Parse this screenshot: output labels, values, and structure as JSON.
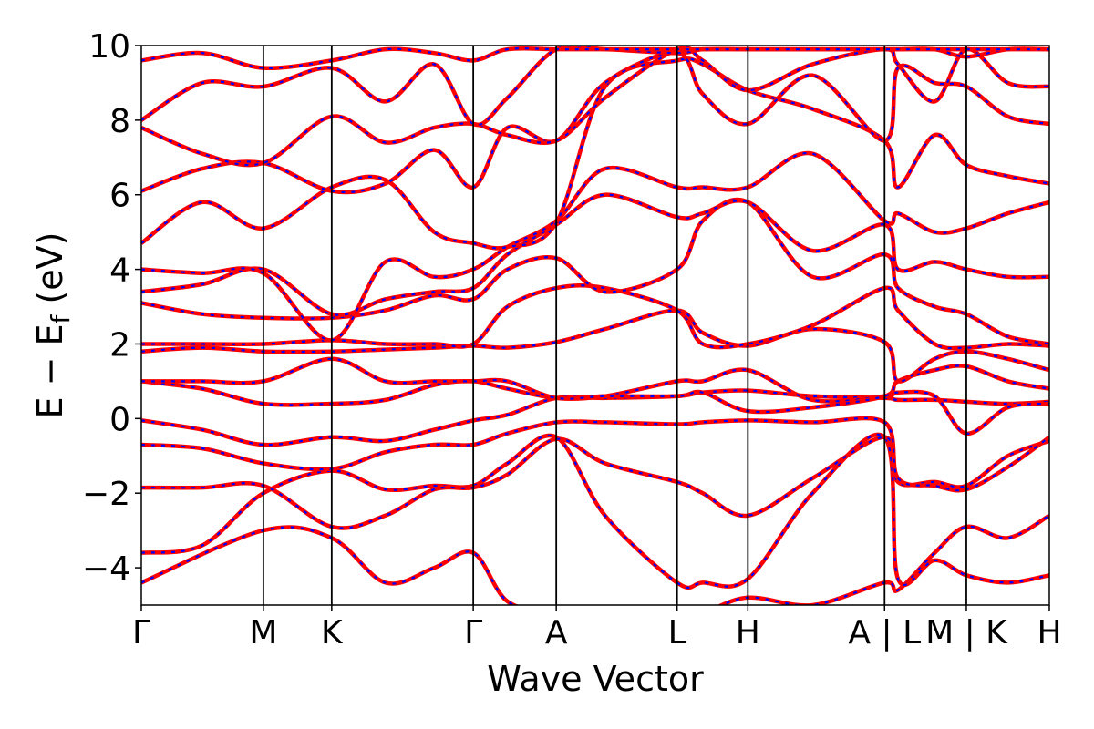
{
  "chart_data": {
    "type": "line",
    "title": "",
    "xlabel": "Wave Vector",
    "ylabel": "E − E_f (eV)",
    "ylabel_main": "E  −  E",
    "ylabel_sub": "f",
    "ylabel_unit": " (eV)",
    "ylim": [
      -5,
      10
    ],
    "xlim": [
      0,
      7.44
    ],
    "grid": false,
    "legend": "none",
    "yticks": [
      -4,
      -2,
      0,
      2,
      4,
      6,
      8,
      10
    ],
    "ytick_labels": [
      "−4",
      "−2",
      "0",
      "2",
      "4",
      "6",
      "8",
      "10"
    ],
    "high_symmetry_points": [
      {
        "x": 0.0,
        "label": "Γ"
      },
      {
        "x": 1.0,
        "label": "M"
      },
      {
        "x": 1.56,
        "label": "K"
      },
      {
        "x": 2.72,
        "label": "Γ"
      },
      {
        "x": 3.4,
        "label": "A"
      },
      {
        "x": 4.39,
        "label": "L"
      },
      {
        "x": 4.97,
        "label": "H"
      },
      {
        "x": 6.09,
        "label": "A | L"
      },
      {
        "x": 6.76,
        "label": "M | K"
      },
      {
        "x": 7.44,
        "label": "H"
      }
    ],
    "series_colors": {
      "reference": "#ff0000",
      "overlay": "#0000ff"
    },
    "series": [
      {
        "x": [
          0,
          1.0,
          1.56,
          2.0,
          2.4,
          2.72,
          3.0,
          3.4,
          3.8,
          4.39,
          4.6,
          4.97,
          5.5,
          6.09,
          6.2,
          6.5,
          6.76,
          7.1,
          7.44
        ],
        "y": [
          -4.4,
          -3.0,
          -3.2,
          -4.4,
          -4.0,
          -3.6,
          -4.9,
          -5.2,
          -5.2,
          -5.2,
          -5.2,
          -4.8,
          -5.0,
          -4.4,
          -4.6,
          -3.6,
          -2.9,
          -3.2,
          -2.6
        ]
      },
      {
        "x": [
          0,
          0.5,
          1.0,
          1.56,
          2.0,
          2.4,
          2.72,
          3.0,
          3.4,
          3.8,
          4.39,
          4.6,
          4.97,
          5.5,
          6.09,
          6.2,
          6.5,
          6.76,
          7.1,
          7.44
        ],
        "y": [
          -3.6,
          -3.4,
          -2.0,
          -1.4,
          -1.9,
          -1.8,
          -1.8,
          -1.2,
          -0.5,
          -2.6,
          -4.4,
          -4.4,
          -4.3,
          -2.0,
          -0.5,
          -4.3,
          -3.8,
          -4.2,
          -4.4,
          -4.2
        ]
      },
      {
        "x": [
          0,
          0.5,
          1.0,
          1.56,
          2.0,
          2.4,
          2.72,
          3.0,
          3.4,
          3.8,
          4.39,
          4.6,
          4.97,
          5.5,
          6.09,
          6.2,
          6.5,
          6.76,
          7.1,
          7.44
        ],
        "y": [
          -1.85,
          -1.85,
          -1.8,
          -2.9,
          -2.6,
          -1.9,
          -1.85,
          -1.5,
          -0.55,
          -1.2,
          -1.7,
          -2.0,
          -2.6,
          -1.6,
          -0.5,
          -1.7,
          -1.7,
          -1.8,
          -1.0,
          -0.6
        ]
      },
      {
        "x": [
          0,
          0.5,
          1.0,
          1.56,
          2.0,
          2.4,
          2.72,
          3.0,
          3.4,
          3.8,
          4.39,
          4.6,
          4.97,
          5.5,
          6.09,
          6.2,
          6.5,
          6.76,
          7.1,
          7.44
        ],
        "y": [
          -0.7,
          -0.8,
          -1.2,
          -1.35,
          -0.9,
          -0.7,
          -0.7,
          -0.4,
          -0.1,
          -0.1,
          -0.15,
          -0.1,
          -0.05,
          -0.1,
          -0.1,
          -1.6,
          -1.8,
          -1.9,
          -1.3,
          -0.5
        ]
      },
      {
        "x": [
          0,
          0.5,
          1.0,
          1.56,
          2.0,
          2.4,
          2.72,
          3.0,
          3.4,
          3.8,
          4.39,
          4.6,
          4.97,
          5.5,
          6.09,
          6.2,
          6.5,
          6.76,
          7.1,
          7.44
        ],
        "y": [
          -0.05,
          -0.3,
          -0.7,
          -0.5,
          -0.6,
          -0.3,
          -0.05,
          0.1,
          0.55,
          0.55,
          0.6,
          0.7,
          0.75,
          0.6,
          0.55,
          0.5,
          0.5,
          0.45,
          0.4,
          0.45
        ]
      },
      {
        "x": [
          0,
          0.5,
          1.0,
          1.56,
          2.0,
          2.4,
          2.72,
          3.0,
          3.4,
          3.8,
          4.39,
          4.6,
          4.97,
          5.5,
          6.09,
          6.2,
          6.5,
          6.76,
          7.1,
          7.44
        ],
        "y": [
          1.0,
          0.8,
          0.4,
          0.4,
          0.5,
          0.9,
          1.0,
          0.8,
          0.55,
          0.6,
          1.0,
          1.0,
          1.3,
          0.5,
          0.6,
          0.7,
          0.6,
          -0.4,
          0.3,
          0.4
        ]
      },
      {
        "x": [
          0,
          0.5,
          1.0,
          1.56,
          2.0,
          2.4,
          2.72,
          3.0,
          3.4,
          3.8,
          4.39,
          4.6,
          4.97,
          5.5,
          6.09,
          6.2,
          6.5,
          6.76,
          7.1,
          7.44
        ],
        "y": [
          1.0,
          1.0,
          1.0,
          1.6,
          1.0,
          1.0,
          1.0,
          1.0,
          0.55,
          0.6,
          0.6,
          0.7,
          0.2,
          0.3,
          0.6,
          1.0,
          1.3,
          1.4,
          1.0,
          0.8
        ]
      },
      {
        "x": [
          0,
          0.5,
          1.0,
          1.56,
          2.0,
          2.4,
          2.72,
          3.0,
          3.4,
          3.8,
          4.39,
          4.6,
          4.97,
          5.5,
          6.09,
          6.2,
          6.5,
          6.76,
          7.1,
          7.44
        ],
        "y": [
          1.8,
          1.9,
          1.8,
          1.8,
          1.85,
          1.9,
          1.95,
          1.9,
          2.05,
          2.4,
          2.9,
          2.3,
          1.95,
          2.4,
          2.05,
          1.0,
          1.6,
          1.8,
          1.6,
          1.3
        ]
      },
      {
        "x": [
          0,
          0.5,
          1.0,
          1.56,
          2.0,
          2.4,
          2.72,
          3.0,
          3.4,
          3.8,
          4.39,
          4.6,
          4.97,
          5.5,
          6.09,
          6.2,
          6.5,
          6.76,
          7.1,
          7.44
        ],
        "y": [
          2.0,
          2.0,
          2.0,
          2.1,
          2.0,
          2.0,
          2.0,
          3.0,
          3.5,
          3.5,
          2.9,
          2.0,
          2.0,
          2.5,
          3.5,
          2.9,
          2.0,
          1.9,
          2.0,
          1.95
        ]
      },
      {
        "x": [
          0,
          0.5,
          1.0,
          1.56,
          2.0,
          2.4,
          2.72,
          3.0,
          3.4,
          3.8,
          4.39,
          4.6,
          4.97,
          5.5,
          6.09,
          6.2,
          6.5,
          6.76,
          7.1,
          7.44
        ],
        "y": [
          3.1,
          2.8,
          2.7,
          2.7,
          2.9,
          3.3,
          3.2,
          4.0,
          4.3,
          3.4,
          4.0,
          5.3,
          5.8,
          3.8,
          4.4,
          3.5,
          3.0,
          2.8,
          2.2,
          2.0
        ]
      },
      {
        "x": [
          0,
          0.5,
          1.0,
          1.56,
          2.0,
          2.4,
          2.72,
          3.0,
          3.4,
          3.8,
          4.39,
          4.6,
          4.97,
          5.5,
          6.09,
          6.2,
          6.5,
          6.76,
          7.1,
          7.44
        ],
        "y": [
          3.4,
          3.6,
          4.0,
          2.8,
          3.2,
          3.4,
          3.5,
          4.4,
          5.2,
          6.0,
          5.4,
          5.5,
          5.8,
          4.5,
          5.2,
          4.0,
          4.2,
          4.0,
          3.8,
          3.8
        ]
      },
      {
        "x": [
          0,
          0.5,
          1.0,
          1.56,
          2.0,
          2.4,
          2.72,
          3.0,
          3.4,
          3.8,
          4.39,
          4.6,
          4.97,
          5.5,
          6.09,
          6.2,
          6.5,
          6.76,
          7.1,
          7.44
        ],
        "y": [
          4.0,
          3.9,
          3.9,
          2.1,
          4.2,
          3.8,
          4.0,
          4.6,
          5.3,
          6.7,
          6.2,
          6.2,
          6.2,
          7.1,
          5.3,
          5.5,
          5.0,
          5.1,
          5.5,
          5.8
        ]
      },
      {
        "x": [
          0,
          0.5,
          1.0,
          1.56,
          2.0,
          2.4,
          2.72,
          3.0,
          3.4,
          3.8,
          4.39,
          4.6,
          4.97,
          5.5,
          6.09,
          6.2,
          6.5,
          6.76,
          7.1,
          7.44
        ],
        "y": [
          4.7,
          5.8,
          5.1,
          6.2,
          6.4,
          5.0,
          4.7,
          4.6,
          5.25,
          8.9,
          9.6,
          9.5,
          8.8,
          8.3,
          7.45,
          6.2,
          7.6,
          6.8,
          6.5,
          6.3
        ]
      },
      {
        "x": [
          0,
          0.5,
          1.0,
          1.56,
          2.0,
          2.4,
          2.72,
          3.0,
          3.4,
          3.8,
          4.39,
          4.6,
          4.97,
          5.5,
          6.09,
          6.2,
          6.5,
          6.76,
          7.1,
          7.44
        ],
        "y": [
          6.1,
          6.7,
          6.85,
          6.1,
          6.3,
          7.2,
          6.2,
          7.8,
          7.45,
          9.0,
          9.8,
          8.7,
          7.9,
          9.2,
          7.45,
          9.4,
          9.0,
          8.9,
          8.1,
          7.9
        ]
      },
      {
        "x": [
          0,
          0.5,
          1.0,
          1.56,
          2.0,
          2.4,
          2.72,
          3.0,
          3.4,
          3.8,
          4.39,
          4.6,
          4.97,
          5.5,
          6.09,
          6.2,
          6.5,
          6.76,
          7.1,
          7.44
        ],
        "y": [
          7.8,
          7.1,
          6.85,
          8.1,
          7.4,
          7.8,
          7.9,
          7.6,
          7.45,
          8.6,
          9.9,
          9.6,
          8.8,
          9.5,
          9.9,
          9.5,
          8.5,
          9.9,
          9.0,
          8.9
        ]
      },
      {
        "x": [
          0,
          0.5,
          1.0,
          1.56,
          2.0,
          2.4,
          2.72,
          3.0,
          3.4,
          3.8,
          4.39,
          4.6,
          4.97,
          5.5,
          6.09,
          6.2,
          6.5,
          6.76,
          7.1,
          7.44
        ],
        "y": [
          8.0,
          9.0,
          8.9,
          9.4,
          8.5,
          9.5,
          7.9,
          8.6,
          9.9,
          9.9,
          9.8,
          9.9,
          9.9,
          9.9,
          9.9,
          9.9,
          9.9,
          9.7,
          9.9,
          9.9
        ]
      },
      {
        "x": [
          0,
          0.5,
          1.0,
          1.56,
          2.0,
          2.4,
          2.72,
          3.0,
          3.4,
          3.8,
          4.39,
          4.6,
          4.97,
          5.5,
          6.09,
          6.2,
          6.5,
          6.76,
          7.1,
          7.44
        ],
        "y": [
          9.6,
          9.8,
          9.4,
          9.6,
          9.9,
          9.8,
          9.6,
          9.9,
          9.9,
          9.9,
          9.9,
          9.9,
          9.9,
          9.9,
          9.9,
          9.9,
          9.9,
          9.9,
          9.9,
          9.9
        ]
      }
    ]
  }
}
